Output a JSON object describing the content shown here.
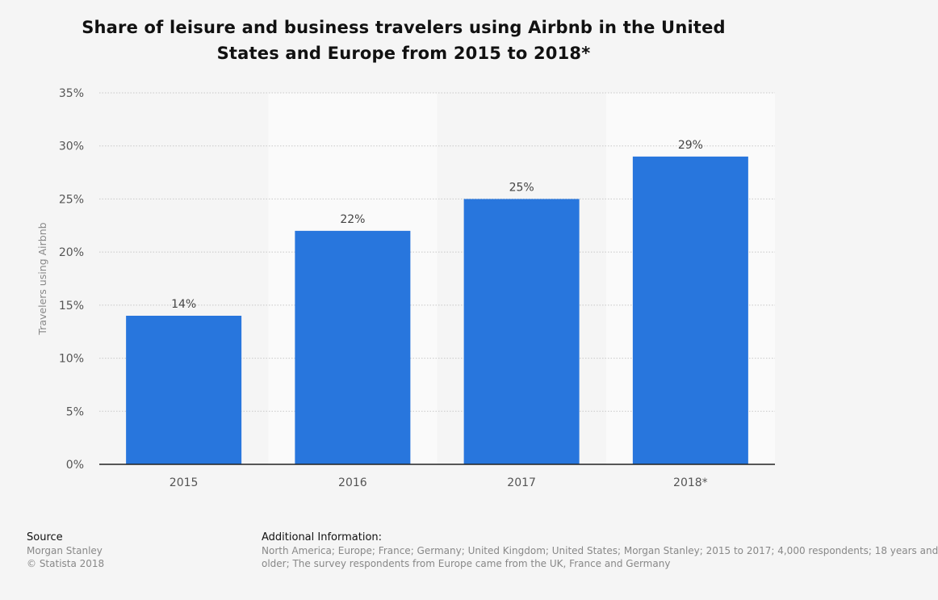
{
  "chart_data": {
    "type": "bar",
    "title": "Share of leisure and business travelers using Airbnb in the United States and Europe from 2015 to 2018*",
    "xlabel": "",
    "ylabel": "Travelers using Airbnb",
    "categories": [
      "2015",
      "2016",
      "2017",
      "2018*"
    ],
    "values": [
      14,
      22,
      25,
      29
    ],
    "data_labels": [
      "14%",
      "22%",
      "25%",
      "29%"
    ],
    "ylim": [
      0,
      35
    ],
    "yticks": [
      0,
      5,
      10,
      15,
      20,
      25,
      30,
      35
    ],
    "ytick_labels": [
      "0%",
      "5%",
      "10%",
      "15%",
      "20%",
      "25%",
      "30%",
      "35%"
    ],
    "grid": true,
    "legend": "none",
    "colors": {
      "bar": "#2876dd",
      "band_light": "#fafafa",
      "band_dark": "#f5f5f5",
      "grid": "#c8c8c8",
      "axis": "#222222",
      "tick_text": "#555555",
      "label_text": "#444444"
    }
  },
  "footer": {
    "source_heading": "Source",
    "source_lines": [
      "Morgan Stanley",
      "© Statista 2018"
    ],
    "info_heading": "Additional Information:",
    "info_lines": [
      "North America; Europe; France; Germany; United Kingdom; United States; Morgan Stanley; 2015 to 2017; 4,000 respondents; 18 years and",
      "older; The survey respondents from Europe came from the UK, France and Germany"
    ]
  }
}
